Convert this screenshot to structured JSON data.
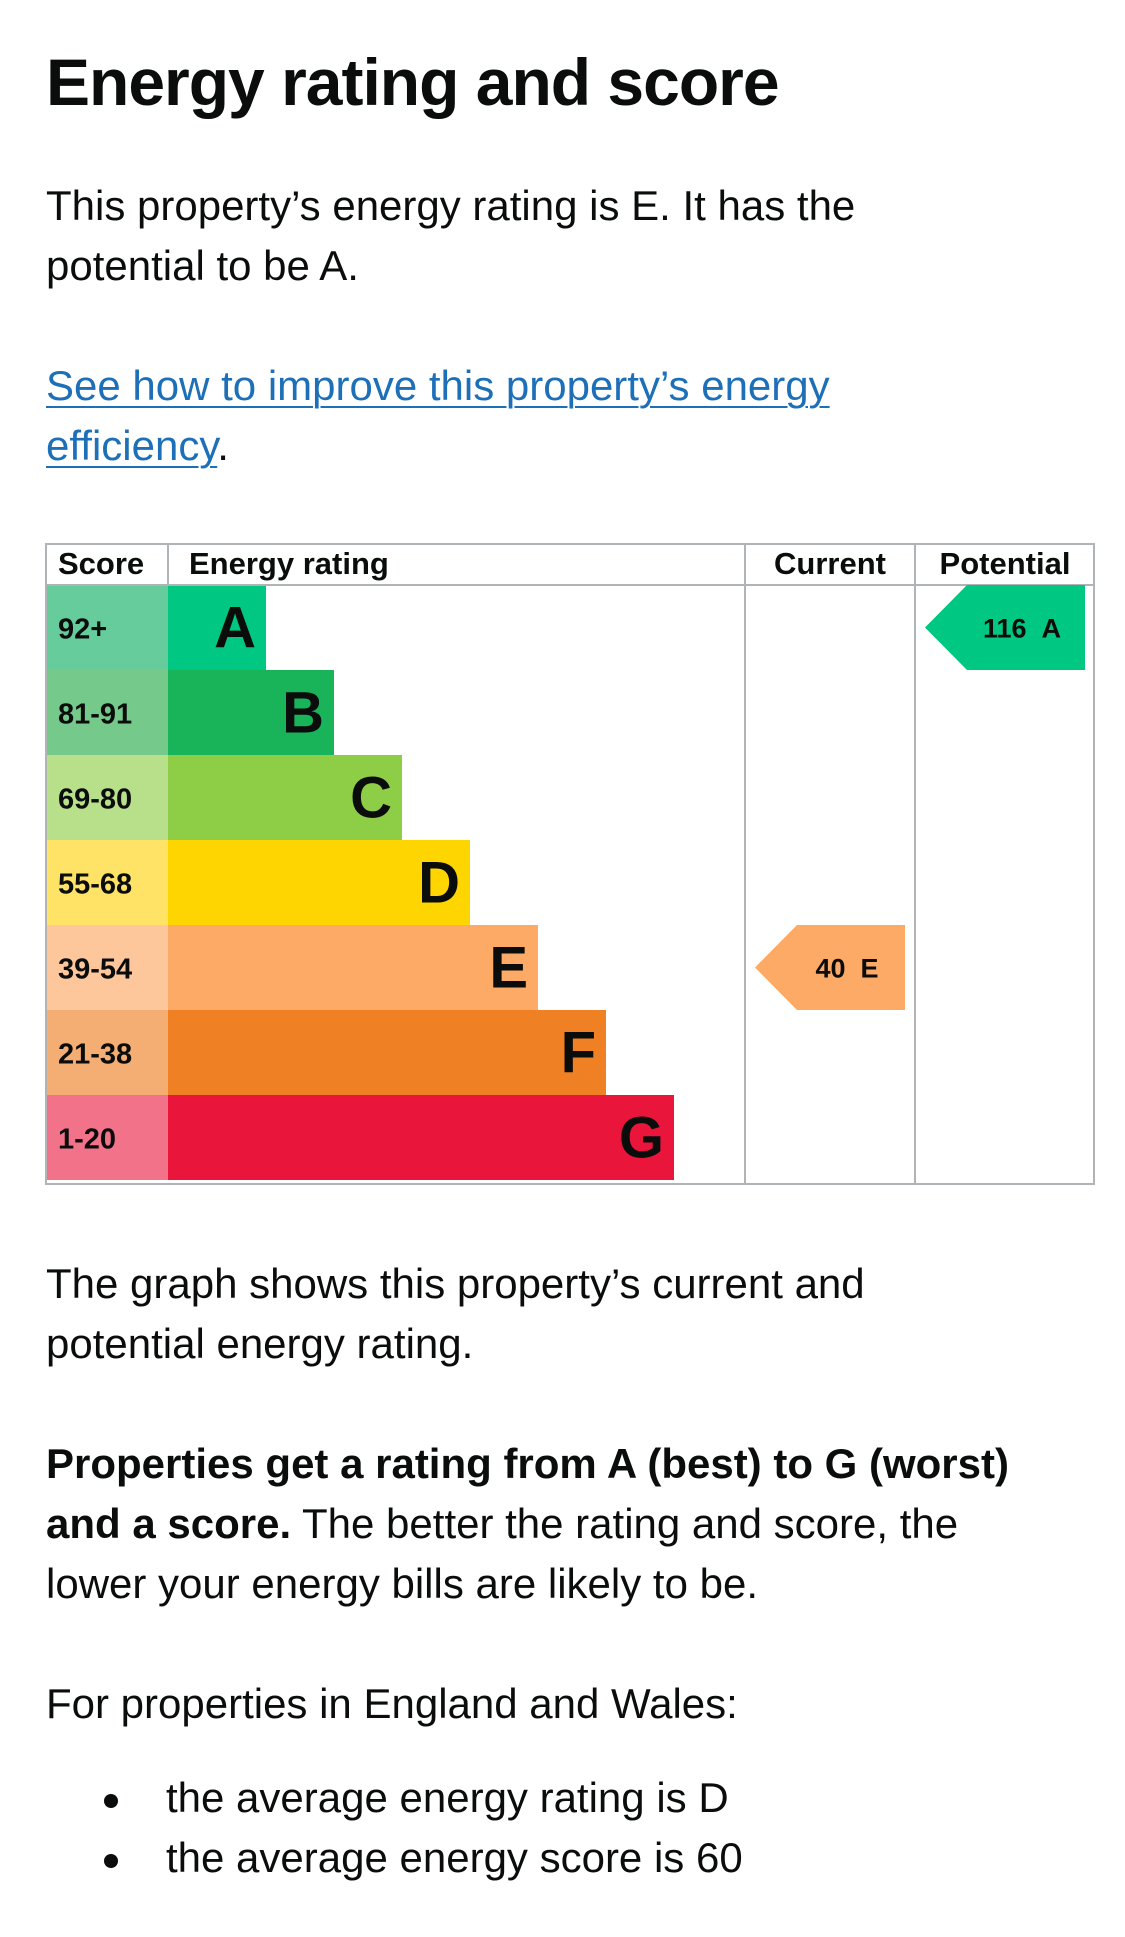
{
  "page": {
    "title": "Energy rating and score",
    "intro": "This property’s energy rating is E. It has the potential to be A.",
    "improve_link": "See how to improve this property’s energy efficiency",
    "improve_link_suffix": ".",
    "graph_description": "The graph shows this property’s current and potential energy rating.",
    "scale_bold": "Properties get a rating from A (best) to G (worst) and a score.",
    "scale_rest": " The better the rating and score, the lower your energy bills are likely to be.",
    "england_wales": "For properties in England and Wales:",
    "bullets": [
      "the average energy rating is D",
      "the average energy score is 60"
    ]
  },
  "chart_data": {
    "type": "bar",
    "headers": {
      "score": "Score",
      "rating": "Energy rating",
      "current": "Current",
      "potential": "Potential"
    },
    "bands": [
      {
        "letter": "A",
        "range": "92+",
        "color": "#00c781",
        "range_bg": "#66cc9c"
      },
      {
        "letter": "B",
        "range": "81-91",
        "color": "#19b459",
        "range_bg": "#75c98b"
      },
      {
        "letter": "C",
        "range": "69-80",
        "color": "#8dce46",
        "range_bg": "#b8e08a"
      },
      {
        "letter": "D",
        "range": "55-68",
        "color": "#ffd500",
        "range_bg": "#ffe366"
      },
      {
        "letter": "E",
        "range": "39-54",
        "color": "#fcaa65",
        "range_bg": "#fdc79b"
      },
      {
        "letter": "F",
        "range": "21-38",
        "color": "#ef8023",
        "range_bg": "#f4ad73"
      },
      {
        "letter": "G",
        "range": "1-20",
        "color": "#e9153b",
        "range_bg": "#f27389"
      }
    ],
    "current": {
      "score": 40,
      "rating": "E",
      "label": "40 E",
      "color": "#fcaa65"
    },
    "potential": {
      "score": 116,
      "rating": "A",
      "label": "116 A",
      "color": "#00c781"
    }
  }
}
